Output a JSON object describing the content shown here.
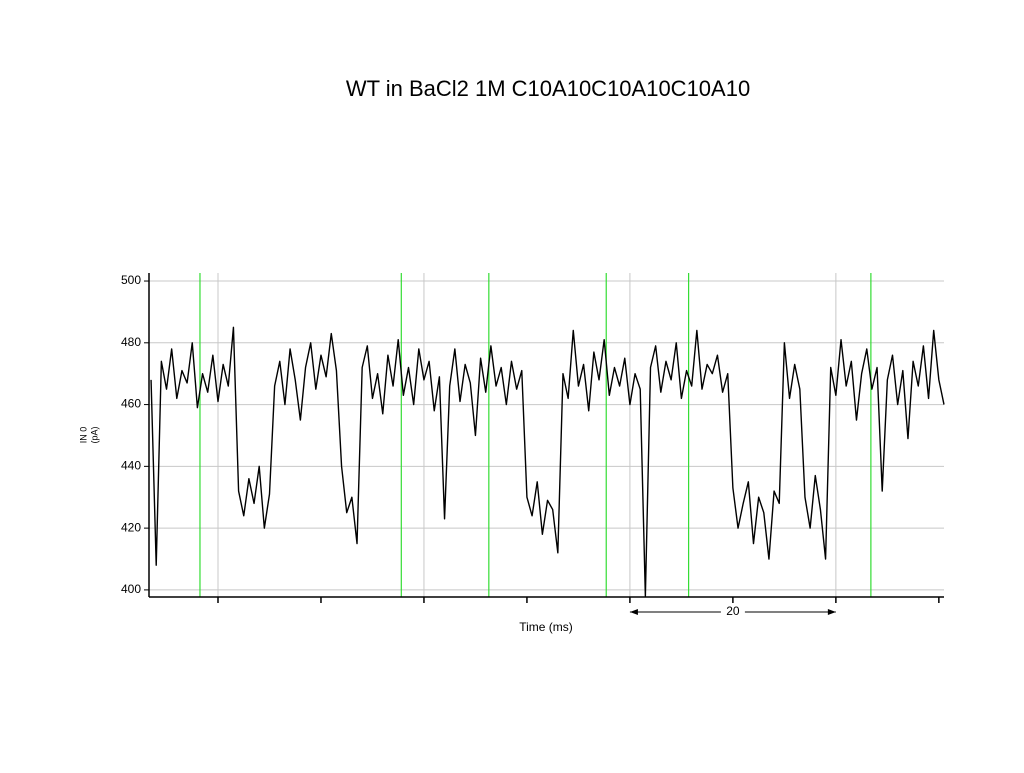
{
  "chart_data": {
    "type": "line",
    "title": "WT in BaCl2 1M C10A10C10A10C10A10",
    "xlabel": "Time (ms)",
    "ylabel": [
      "IN 0",
      "(pA)"
    ],
    "xlim": [
      -6.7,
      70.5
    ],
    "ylim": [
      397.7,
      502.6
    ],
    "xticks": [
      0,
      10,
      20,
      30,
      40,
      50,
      60,
      70
    ],
    "x_grid": [
      0,
      20,
      40,
      60
    ],
    "yticks": [
      400,
      420,
      440,
      460,
      480,
      500
    ],
    "grid": true,
    "markers": {
      "color": "#33dd33",
      "x": [
        -1.75,
        17.8,
        26.3,
        37.7,
        45.7,
        63.4
      ]
    },
    "scale_bar": {
      "start": 40,
      "length": 20
    },
    "series": [
      {
        "color": "#000000",
        "x": [
          -6.5,
          -6,
          -5.5,
          -5,
          -4.5,
          -4,
          -3.5,
          -3,
          -2.5,
          -2,
          -1.5,
          -1,
          -0.5,
          0,
          0.5,
          1,
          1.5,
          2,
          2.5,
          3,
          3.5,
          4,
          4.5,
          5,
          5.5,
          6,
          6.5,
          7,
          7.5,
          8,
          8.5,
          9,
          9.5,
          10,
          10.5,
          11,
          11.5,
          12,
          12.5,
          13,
          13.5,
          14,
          14.5,
          15,
          15.5,
          16,
          16.5,
          17,
          17.5,
          18,
          18.5,
          19,
          19.5,
          20,
          20.5,
          21,
          21.5,
          22,
          22.5,
          23,
          23.5,
          24,
          24.5,
          25,
          25.5,
          26,
          26.5,
          27,
          27.5,
          28,
          28.5,
          29,
          29.5,
          30,
          30.5,
          31,
          31.5,
          32,
          32.5,
          33,
          33.5,
          34,
          34.5,
          35,
          35.5,
          36,
          36.5,
          37,
          37.5,
          38,
          38.5,
          39,
          39.5,
          40,
          40.5,
          41,
          41.5,
          42,
          42.5,
          43,
          43.5,
          44,
          44.5,
          45,
          45.5,
          46,
          46.5,
          47,
          47.5,
          48,
          48.5,
          49,
          49.5,
          50,
          50.5,
          51,
          51.5,
          52,
          52.5,
          53,
          53.5,
          54,
          54.5,
          55,
          55.5,
          56,
          56.5,
          57,
          57.5,
          58,
          58.5,
          59,
          59.5,
          60,
          60.5,
          61,
          61.5,
          62,
          62.5,
          63,
          63.5,
          64,
          64.5,
          65,
          65.5,
          66,
          66.5,
          67,
          67.5,
          68,
          68.5,
          69,
          69.5,
          70,
          70.5
        ],
        "values": [
          468,
          408,
          474,
          465,
          478,
          462,
          471,
          467,
          480,
          459,
          470,
          464,
          476,
          461,
          473,
          466,
          485,
          432,
          424,
          436,
          428,
          440,
          420,
          431,
          466,
          474,
          460,
          478,
          468,
          455,
          472,
          480,
          465,
          476,
          469,
          483,
          471,
          440,
          425,
          430,
          415,
          472,
          479,
          462,
          470,
          457,
          476,
          466,
          481,
          463,
          472,
          460,
          478,
          468,
          474,
          458,
          469,
          423,
          466,
          478,
          461,
          473,
          467,
          450,
          475,
          464,
          479,
          466,
          472,
          460,
          474,
          465,
          471,
          430,
          424,
          435,
          418,
          429,
          426,
          412,
          470,
          462,
          484,
          466,
          473,
          458,
          477,
          468,
          481,
          463,
          472,
          466,
          475,
          460,
          470,
          465,
          398,
          472,
          479,
          464,
          474,
          468,
          480,
          462,
          471,
          466,
          484,
          465,
          473,
          470,
          476,
          464,
          470,
          433,
          420,
          428,
          435,
          415,
          430,
          425,
          410,
          432,
          428,
          480,
          462,
          473,
          465,
          430,
          420,
          437,
          426,
          410,
          472,
          463,
          481,
          466,
          474,
          455,
          470,
          478,
          465,
          472,
          432,
          468,
          476,
          460,
          471,
          449,
          474,
          466,
          479,
          462,
          484,
          468,
          460
        ]
      }
    ]
  }
}
